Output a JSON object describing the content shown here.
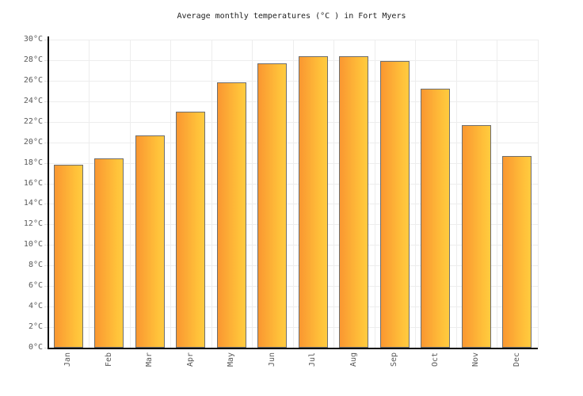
{
  "chart_data": {
    "type": "bar",
    "title": "Average monthly temperatures (°C ) in Fort Myers",
    "categories": [
      "Jan",
      "Feb",
      "Mar",
      "Apr",
      "May",
      "Jun",
      "Jul",
      "Aug",
      "Sep",
      "Oct",
      "Nov",
      "Dec"
    ],
    "values": [
      17.8,
      18.4,
      20.7,
      23.0,
      25.8,
      27.7,
      28.4,
      28.4,
      27.9,
      25.2,
      21.7,
      18.7
    ],
    "xlabel": "",
    "ylabel": "",
    "ylim": [
      0,
      30
    ],
    "ytick_step": 2,
    "ytick_suffix": "°C",
    "grid": true,
    "legend": "none",
    "colors": {
      "bar_gradient_left": "#FA9731",
      "bar_gradient_right": "#FFCB40",
      "bar_border": "#6E6E6E",
      "gridline": "#EDEDED",
      "axis": "#0A0A0A",
      "tick": "#DCDCDC",
      "label_text": "#5A5A5A",
      "title_text": "#1F1F1F",
      "background": "#FFFFFF"
    }
  }
}
